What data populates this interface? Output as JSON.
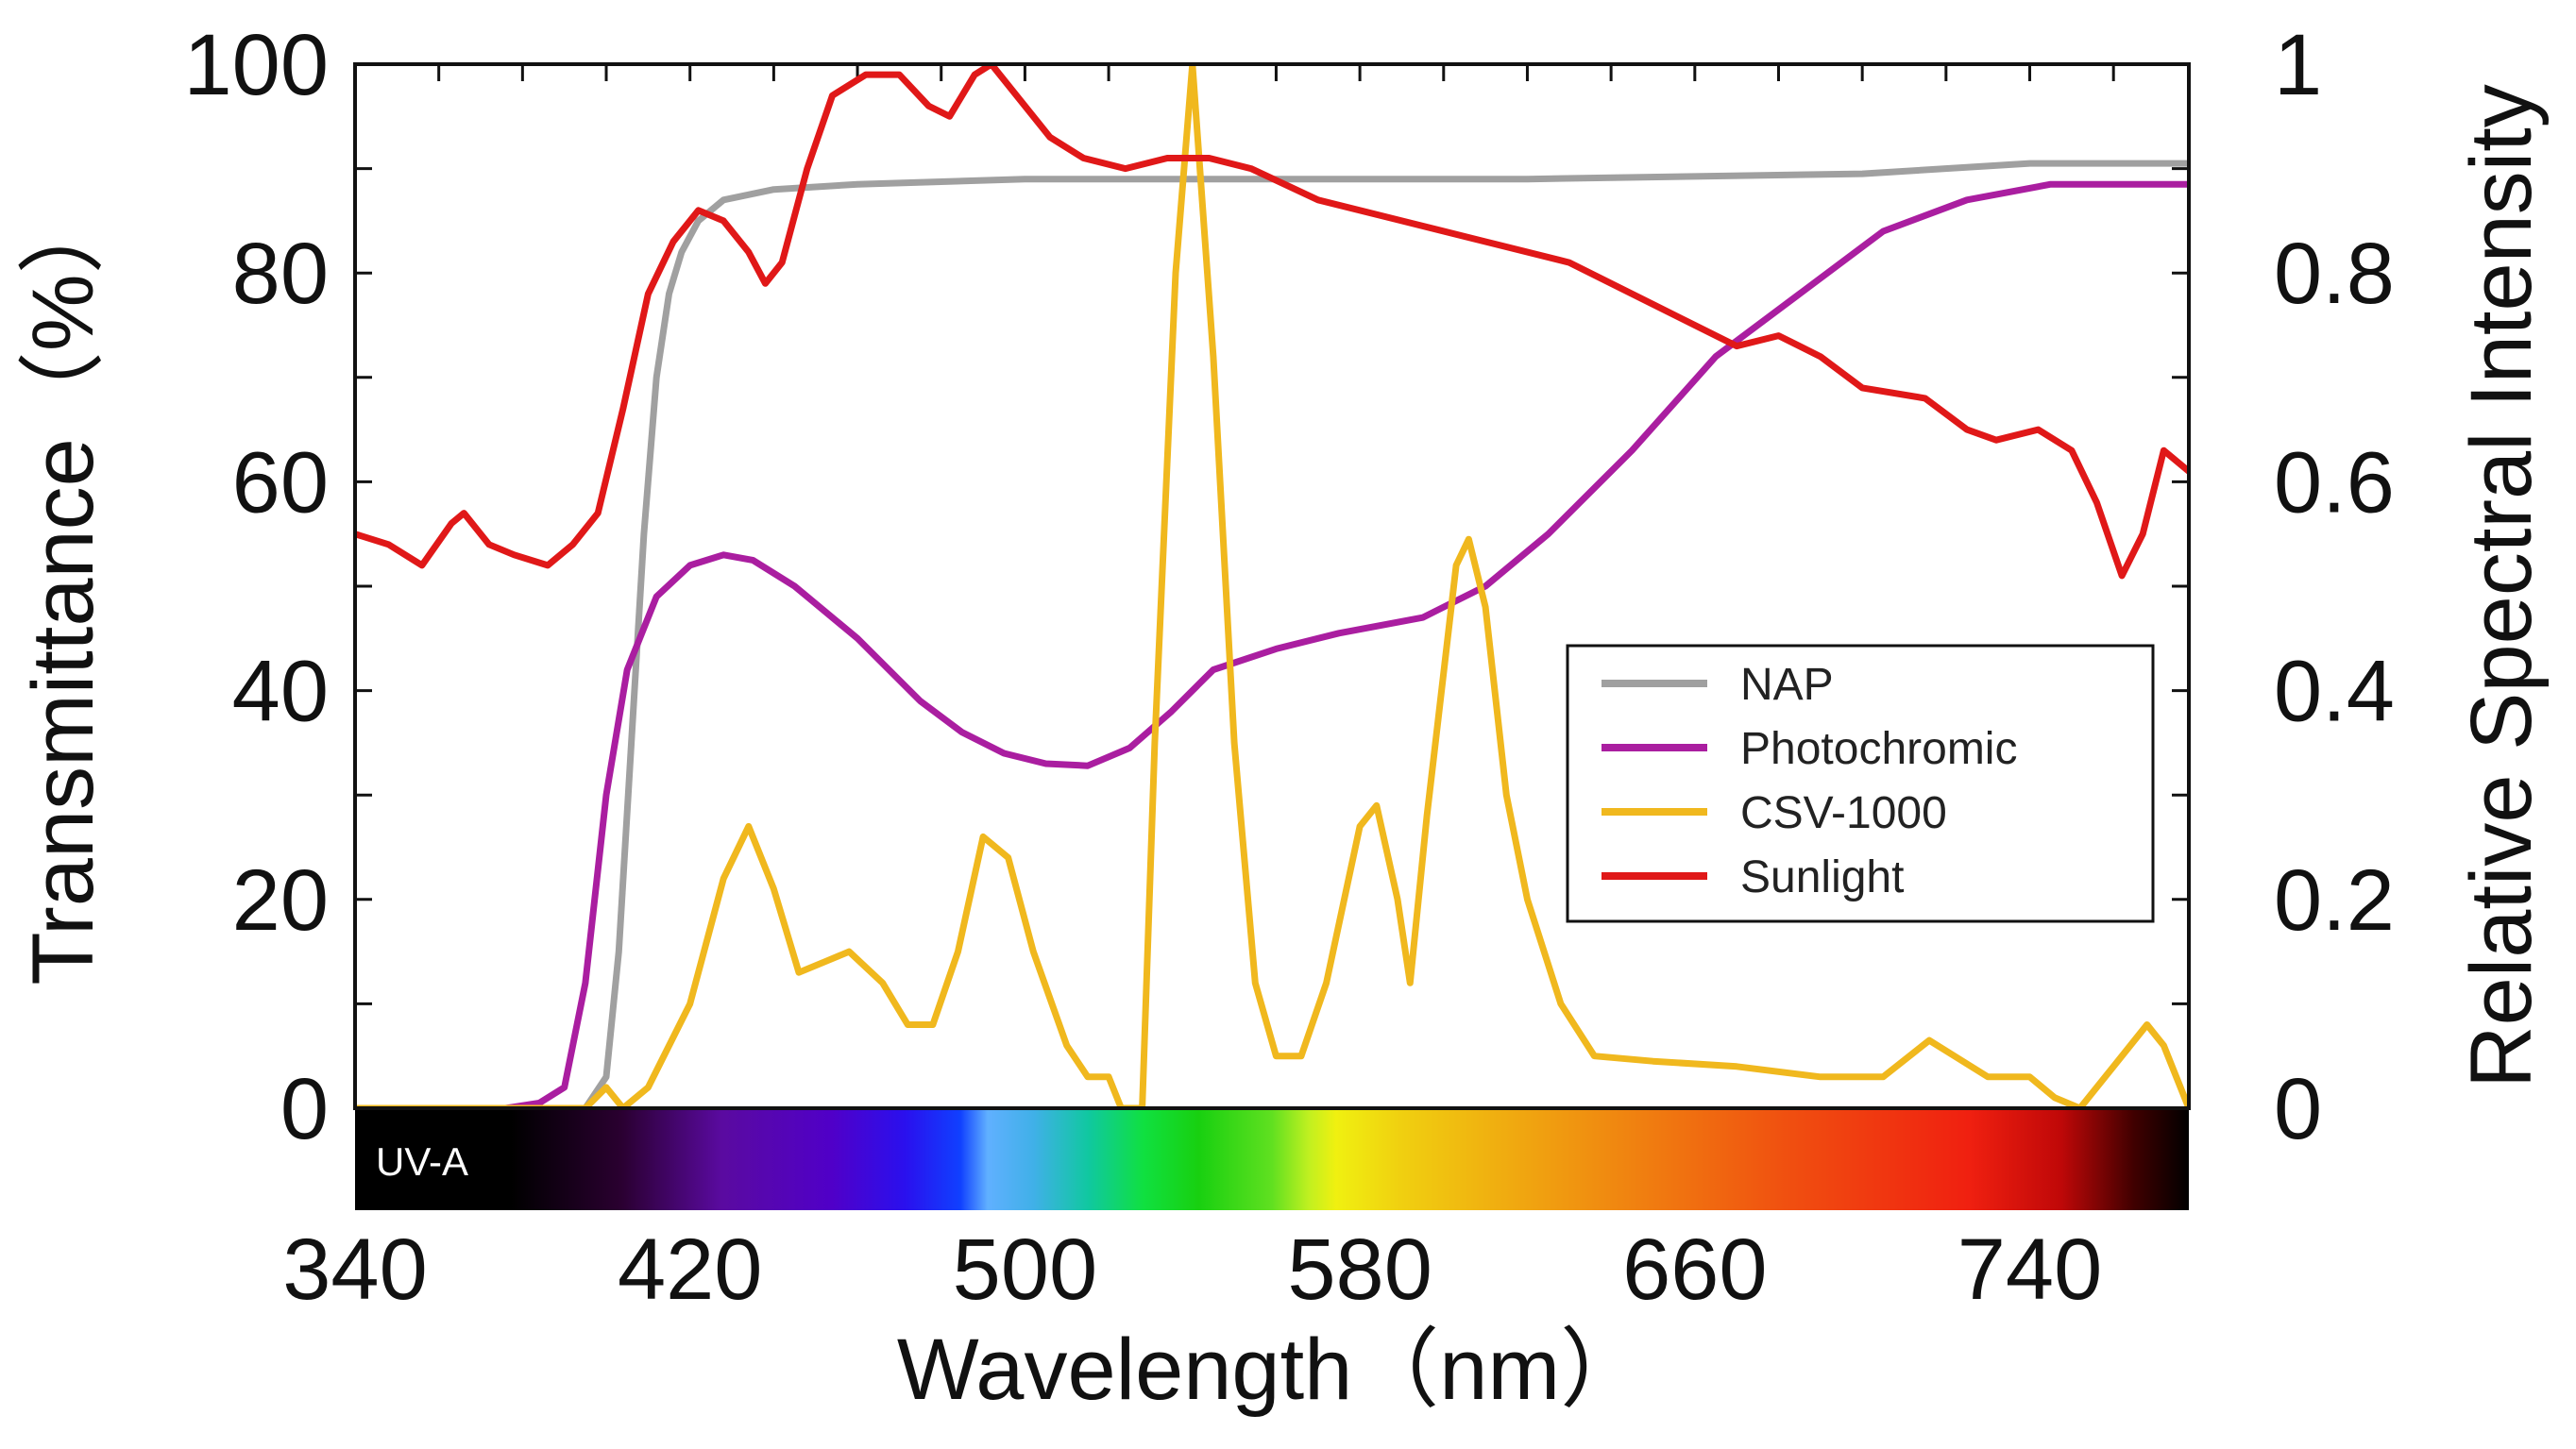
{
  "chart_data": {
    "type": "line",
    "title": "",
    "xlabel": "Wavelength（nm）",
    "ylabel_left": "Transmittance（%）",
    "ylabel_right": "Relative Spectral Intensity",
    "xlim": [
      340,
      778
    ],
    "ylim_left": [
      0,
      100
    ],
    "ylim_right": [
      0,
      1
    ],
    "x_ticks": [
      "340",
      "420",
      "500",
      "580",
      "660",
      "740"
    ],
    "y_ticks_left": [
      "100",
      "80",
      "60",
      "40",
      "20",
      "0"
    ],
    "y_ticks_right": [
      "1",
      "0.8",
      "0.6",
      "0.4",
      "0.2",
      "0"
    ],
    "spectrum_band_label": "UV-A",
    "legend_position": "center-right",
    "series": [
      {
        "name": "NAP",
        "axis": "left",
        "color": "#a0a0a0",
        "points": [
          [
            340,
            0
          ],
          [
            395,
            0
          ],
          [
            400,
            3
          ],
          [
            403,
            15
          ],
          [
            406,
            35
          ],
          [
            409,
            55
          ],
          [
            412,
            70
          ],
          [
            415,
            78
          ],
          [
            418,
            82
          ],
          [
            422,
            85
          ],
          [
            428,
            87
          ],
          [
            440,
            88
          ],
          [
            460,
            88.5
          ],
          [
            500,
            89
          ],
          [
            560,
            89
          ],
          [
            620,
            89
          ],
          [
            700,
            89.5
          ],
          [
            740,
            90.5
          ],
          [
            778,
            90.5
          ]
        ]
      },
      {
        "name": "Photochromic",
        "axis": "left",
        "color": "#aa1ea0",
        "points": [
          [
            340,
            0
          ],
          [
            376,
            0
          ],
          [
            384,
            0.5
          ],
          [
            390,
            2
          ],
          [
            395,
            12
          ],
          [
            400,
            30
          ],
          [
            405,
            42
          ],
          [
            412,
            49
          ],
          [
            420,
            52
          ],
          [
            428,
            53
          ],
          [
            435,
            52.5
          ],
          [
            445,
            50
          ],
          [
            460,
            45
          ],
          [
            475,
            39
          ],
          [
            485,
            36
          ],
          [
            495,
            34
          ],
          [
            505,
            33
          ],
          [
            515,
            32.8
          ],
          [
            525,
            34.5
          ],
          [
            535,
            38
          ],
          [
            545,
            42
          ],
          [
            560,
            44
          ],
          [
            575,
            45.5
          ],
          [
            595,
            47
          ],
          [
            610,
            50
          ],
          [
            625,
            55
          ],
          [
            645,
            63
          ],
          [
            665,
            72
          ],
          [
            685,
            78
          ],
          [
            705,
            84
          ],
          [
            725,
            87
          ],
          [
            745,
            88.5
          ],
          [
            760,
            88.5
          ],
          [
            778,
            88.5
          ]
        ]
      },
      {
        "name": "CSV-1000",
        "axis": "right",
        "color": "#f0b81e",
        "points": [
          [
            340,
            0
          ],
          [
            395,
            0
          ],
          [
            400,
            0.02
          ],
          [
            404,
            0
          ],
          [
            410,
            0.02
          ],
          [
            420,
            0.1
          ],
          [
            428,
            0.22
          ],
          [
            434,
            0.27
          ],
          [
            440,
            0.21
          ],
          [
            446,
            0.13
          ],
          [
            452,
            0.14
          ],
          [
            458,
            0.15
          ],
          [
            466,
            0.12
          ],
          [
            472,
            0.08
          ],
          [
            478,
            0.08
          ],
          [
            484,
            0.15
          ],
          [
            490,
            0.26
          ],
          [
            496,
            0.24
          ],
          [
            502,
            0.15
          ],
          [
            510,
            0.06
          ],
          [
            515,
            0.03
          ],
          [
            520,
            0.03
          ],
          [
            523,
            0
          ],
          [
            528,
            0
          ],
          [
            531,
            0.35
          ],
          [
            536,
            0.8
          ],
          [
            540,
            1.0
          ],
          [
            545,
            0.72
          ],
          [
            550,
            0.35
          ],
          [
            555,
            0.12
          ],
          [
            560,
            0.05
          ],
          [
            566,
            0.05
          ],
          [
            572,
            0.12
          ],
          [
            580,
            0.27
          ],
          [
            584,
            0.29
          ],
          [
            589,
            0.2
          ],
          [
            592,
            0.12
          ],
          [
            596,
            0.28
          ],
          [
            603,
            0.52
          ],
          [
            606,
            0.545
          ],
          [
            610,
            0.48
          ],
          [
            615,
            0.3
          ],
          [
            620,
            0.2
          ],
          [
            628,
            0.1
          ],
          [
            636,
            0.05
          ],
          [
            650,
            0.045
          ],
          [
            670,
            0.04
          ],
          [
            690,
            0.03
          ],
          [
            705,
            0.03
          ],
          [
            716,
            0.065
          ],
          [
            722,
            0.05
          ],
          [
            730,
            0.03
          ],
          [
            740,
            0.03
          ],
          [
            746,
            0.01
          ],
          [
            752,
            0
          ],
          [
            760,
            0.04
          ],
          [
            768,
            0.08
          ],
          [
            772,
            0.06
          ],
          [
            778,
            0
          ]
        ]
      },
      {
        "name": "Sunlight",
        "axis": "right",
        "color": "#e01818",
        "points": [
          [
            340,
            0.55
          ],
          [
            348,
            0.54
          ],
          [
            356,
            0.52
          ],
          [
            363,
            0.56
          ],
          [
            366,
            0.57
          ],
          [
            372,
            0.54
          ],
          [
            378,
            0.53
          ],
          [
            386,
            0.52
          ],
          [
            392,
            0.54
          ],
          [
            398,
            0.57
          ],
          [
            404,
            0.67
          ],
          [
            410,
            0.78
          ],
          [
            416,
            0.83
          ],
          [
            422,
            0.86
          ],
          [
            428,
            0.85
          ],
          [
            434,
            0.82
          ],
          [
            438,
            0.79
          ],
          [
            442,
            0.81
          ],
          [
            448,
            0.9
          ],
          [
            454,
            0.97
          ],
          [
            462,
            0.99
          ],
          [
            470,
            0.99
          ],
          [
            477,
            0.96
          ],
          [
            482,
            0.95
          ],
          [
            488,
            0.99
          ],
          [
            492,
            1.0
          ],
          [
            498,
            0.97
          ],
          [
            506,
            0.93
          ],
          [
            514,
            0.91
          ],
          [
            524,
            0.9
          ],
          [
            534,
            0.91
          ],
          [
            544,
            0.91
          ],
          [
            554,
            0.9
          ],
          [
            570,
            0.87
          ],
          [
            590,
            0.85
          ],
          [
            610,
            0.83
          ],
          [
            630,
            0.81
          ],
          [
            650,
            0.77
          ],
          [
            660,
            0.75
          ],
          [
            670,
            0.73
          ],
          [
            680,
            0.74
          ],
          [
            690,
            0.72
          ],
          [
            700,
            0.69
          ],
          [
            715,
            0.68
          ],
          [
            725,
            0.65
          ],
          [
            732,
            0.64
          ],
          [
            742,
            0.65
          ],
          [
            750,
            0.63
          ],
          [
            756,
            0.58
          ],
          [
            762,
            0.51
          ],
          [
            767,
            0.55
          ],
          [
            772,
            0.63
          ],
          [
            778,
            0.61
          ]
        ]
      }
    ]
  }
}
